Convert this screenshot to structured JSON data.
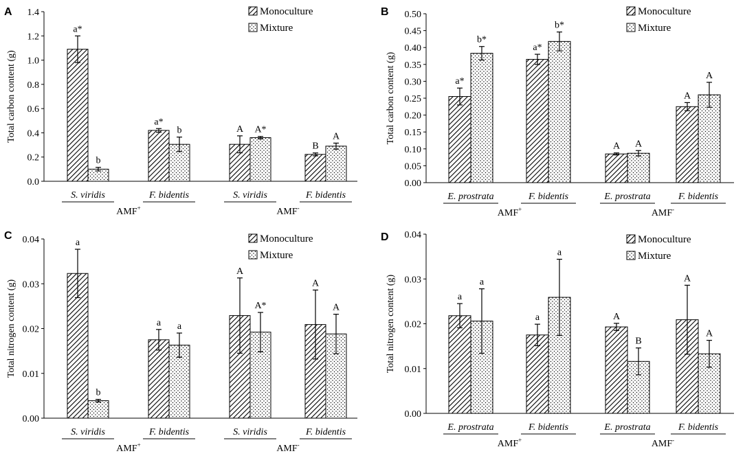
{
  "colors": {
    "axis": "#000000",
    "bar_stroke": "#000000",
    "background": "#ffffff"
  },
  "legend": {
    "monoculture": "Monoculture",
    "mixture": "Mixture"
  },
  "chart_data": [
    {
      "panel": "A",
      "type": "bar",
      "title": "",
      "ylabel": "Total carbon content (g)",
      "ylim": [
        0,
        1.4
      ],
      "yticks": [
        "0.0",
        "0.2",
        "0.4",
        "0.6",
        "0.8",
        "1.0",
        "1.2",
        "1.4"
      ],
      "categories": [
        "S. viridis",
        "F. bidentis",
        "S. viridis",
        "F. bidentis"
      ],
      "groups": [
        {
          "label": "AMF",
          "sup": "+"
        },
        {
          "label": "AMF",
          "sup": "-"
        }
      ],
      "series": [
        {
          "name": "Monoculture",
          "values": [
            1.09,
            0.42,
            0.305,
            0.222
          ],
          "errors": [
            0.11,
            0.015,
            0.07,
            0.012
          ],
          "labels": [
            "a*",
            "a*",
            "A",
            "B"
          ]
        },
        {
          "name": "Mixture",
          "values": [
            0.1,
            0.305,
            0.36,
            0.29
          ],
          "errors": [
            0.015,
            0.06,
            0.01,
            0.025
          ],
          "labels": [
            "b",
            "b",
            "A*",
            "A"
          ]
        }
      ]
    },
    {
      "panel": "B",
      "type": "bar",
      "title": "",
      "ylabel": "Total carbon content (g)",
      "ylim": [
        0,
        0.5
      ],
      "yticks": [
        "0.00",
        "0.05",
        "0.10",
        "0.15",
        "0.20",
        "0.25",
        "0.30",
        "0.35",
        "0.40",
        "0.45",
        "0.50"
      ],
      "categories": [
        "E. prostrata",
        "F. bidentis",
        "E. prostrata",
        "F. bidentis"
      ],
      "groups": [
        {
          "label": "AMF",
          "sup": "+"
        },
        {
          "label": "AMF",
          "sup": "-"
        }
      ],
      "series": [
        {
          "name": "Monoculture",
          "values": [
            0.255,
            0.365,
            0.085,
            0.225
          ],
          "errors": [
            0.025,
            0.015,
            0.003,
            0.012
          ],
          "labels": [
            "a*",
            "a*",
            "A",
            "A"
          ]
        },
        {
          "name": "Mixture",
          "values": [
            0.383,
            0.418,
            0.087,
            0.26
          ],
          "errors": [
            0.02,
            0.028,
            0.008,
            0.037
          ],
          "labels": [
            "b*",
            "b*",
            "A",
            "A"
          ]
        }
      ]
    },
    {
      "panel": "C",
      "type": "bar",
      "title": "",
      "ylabel": "Total nitrogen content (g)",
      "ylim": [
        0,
        0.04
      ],
      "yticks": [
        "0.00",
        "0.01",
        "0.02",
        "0.03",
        "0.04"
      ],
      "categories": [
        "S. viridis",
        "F. bidentis",
        "S. viridis",
        "F. bidentis"
      ],
      "groups": [
        {
          "label": "AMF",
          "sup": "+"
        },
        {
          "label": "AMF",
          "sup": "-"
        }
      ],
      "series": [
        {
          "name": "Monoculture",
          "values": [
            0.0323,
            0.0175,
            0.0229,
            0.0209
          ],
          "errors": [
            0.0054,
            0.0023,
            0.0084,
            0.0077
          ],
          "labels": [
            "a",
            "a",
            "A",
            "A"
          ]
        },
        {
          "name": "Mixture",
          "values": [
            0.0039,
            0.0163,
            0.0192,
            0.0188
          ],
          "errors": [
            0.0003,
            0.0027,
            0.0044,
            0.0044
          ],
          "labels": [
            "b",
            "a",
            "A*",
            "A"
          ]
        }
      ]
    },
    {
      "panel": "D",
      "type": "bar",
      "title": "",
      "ylabel": "Total nitrogen content (g)",
      "ylim": [
        0,
        0.04
      ],
      "yticks": [
        "0.00",
        "0.01",
        "0.02",
        "0.03",
        "0.04"
      ],
      "categories": [
        "E. prostrata",
        "F. bidentis",
        "E. prostrata",
        "F. bidentis"
      ],
      "groups": [
        {
          "label": "AMF",
          "sup": "+"
        },
        {
          "label": "AMF",
          "sup": "-"
        }
      ],
      "series": [
        {
          "name": "Monoculture",
          "values": [
            0.0218,
            0.0175,
            0.0193,
            0.0209
          ],
          "errors": [
            0.0027,
            0.0024,
            0.0008,
            0.0077
          ],
          "labels": [
            "a",
            "a",
            "A",
            "A"
          ]
        },
        {
          "name": "Mixture",
          "values": [
            0.0206,
            0.0259,
            0.0116,
            0.0133
          ],
          "errors": [
            0.0072,
            0.0085,
            0.003,
            0.003
          ],
          "labels": [
            "a",
            "a",
            "B",
            "A"
          ]
        }
      ]
    }
  ]
}
